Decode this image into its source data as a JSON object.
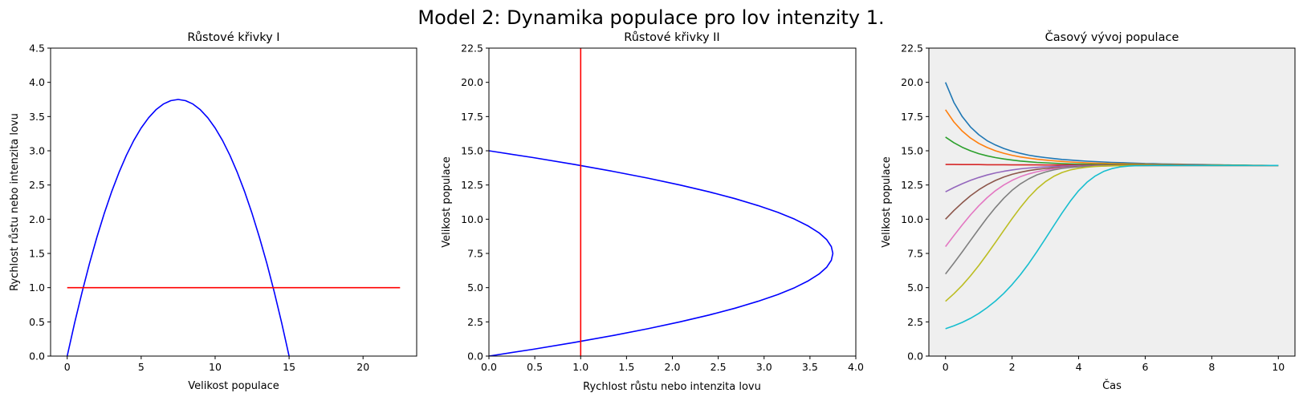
{
  "figure": {
    "suptitle": "Model 2: Dynamika populace pro lov intenzity 1."
  },
  "chart_data": [
    {
      "type": "line",
      "title": "Růstové křivky I",
      "xlabel": "Velikost populace",
      "ylabel": "Rychlost růstu nebo intenzita lovu",
      "xlim": [
        -1.125,
        23.625
      ],
      "ylim": [
        0,
        4.5
      ],
      "xticks": [
        0,
        5,
        10,
        15,
        20
      ],
      "xtick_labels": [
        "0",
        "5",
        "10",
        "15",
        "20"
      ],
      "yticks": [
        0,
        0.5,
        1,
        1.5,
        2,
        2.5,
        3,
        3.5,
        4,
        4.5
      ],
      "ytick_labels": [
        "0.0",
        "0.5",
        "1.0",
        "1.5",
        "2.0",
        "2.5",
        "3.0",
        "3.5",
        "4.0",
        "4.5"
      ],
      "background": "#ffffff",
      "series": [
        {
          "color": "#0000ff",
          "x": [
            0,
            0.5,
            1,
            1.5,
            2,
            2.5,
            3,
            3.5,
            4,
            4.5,
            5,
            5.5,
            6,
            6.5,
            7,
            7.5,
            8,
            8.5,
            9,
            9.5,
            10,
            10.5,
            11,
            11.5,
            12,
            12.5,
            13,
            13.5,
            14,
            14.5,
            15
          ],
          "y": [
            0,
            0.483,
            0.933,
            1.35,
            1.733,
            2.083,
            2.4,
            2.683,
            2.933,
            3.15,
            3.333,
            3.483,
            3.6,
            3.683,
            3.733,
            3.75,
            3.733,
            3.683,
            3.6,
            3.483,
            3.333,
            3.15,
            2.933,
            2.683,
            2.4,
            2.083,
            1.733,
            1.35,
            0.933,
            0.483,
            0
          ]
        },
        {
          "color": "#ff0000",
          "x": [
            0,
            22.5
          ],
          "y": [
            1,
            1
          ]
        }
      ]
    },
    {
      "type": "line",
      "title": "Růstové křivky II",
      "xlabel": "Rychlost růstu nebo intenzita lovu",
      "ylabel": "Velikost populace",
      "xlim": [
        0,
        4
      ],
      "ylim": [
        0,
        22.5
      ],
      "xticks": [
        0,
        0.5,
        1,
        1.5,
        2,
        2.5,
        3,
        3.5,
        4
      ],
      "xtick_labels": [
        "0.0",
        "0.5",
        "1.0",
        "1.5",
        "2.0",
        "2.5",
        "3.0",
        "3.5",
        "4.0"
      ],
      "yticks": [
        0,
        2.5,
        5,
        7.5,
        10,
        12.5,
        15,
        17.5,
        20,
        22.5
      ],
      "ytick_labels": [
        "0.0",
        "2.5",
        "5.0",
        "7.5",
        "10.0",
        "12.5",
        "15.0",
        "17.5",
        "20.0",
        "22.5"
      ],
      "background": "#ffffff",
      "series": [
        {
          "color": "#0000ff",
          "x": [
            0,
            0.483,
            0.933,
            1.35,
            1.733,
            2.083,
            2.4,
            2.683,
            2.933,
            3.15,
            3.333,
            3.483,
            3.6,
            3.683,
            3.733,
            3.75,
            3.733,
            3.683,
            3.6,
            3.483,
            3.333,
            3.15,
            2.933,
            2.683,
            2.4,
            2.083,
            1.733,
            1.35,
            0.933,
            0.483,
            0
          ],
          "y": [
            0,
            0.5,
            1,
            1.5,
            2,
            2.5,
            3,
            3.5,
            4,
            4.5,
            5,
            5.5,
            6,
            6.5,
            7,
            7.5,
            8,
            8.5,
            9,
            9.5,
            10,
            10.5,
            11,
            11.5,
            12,
            12.5,
            13,
            13.5,
            14,
            14.5,
            15
          ]
        },
        {
          "color": "#ff0000",
          "x": [
            1,
            1
          ],
          "y": [
            0,
            22.5
          ]
        }
      ]
    },
    {
      "type": "line",
      "title": "Časový vývoj populace",
      "xlabel": "Čas",
      "ylabel": "Velikost populace",
      "xlim": [
        -0.5,
        10.5
      ],
      "ylim": [
        0,
        22.5
      ],
      "xticks": [
        0,
        2,
        4,
        6,
        8,
        10
      ],
      "xtick_labels": [
        "0",
        "2",
        "4",
        "6",
        "8",
        "10"
      ],
      "yticks": [
        0,
        2.5,
        5,
        7.5,
        10,
        12.5,
        15,
        17.5,
        20,
        22.5
      ],
      "ytick_labels": [
        "0.0",
        "2.5",
        "5.0",
        "7.5",
        "10.0",
        "12.5",
        "15.0",
        "17.5",
        "20.0",
        "22.5"
      ],
      "background": "#efefef",
      "x": [
        0,
        0.25,
        0.5,
        0.75,
        1,
        1.25,
        1.5,
        1.75,
        2,
        2.25,
        2.5,
        2.75,
        3,
        3.25,
        3.5,
        3.75,
        4,
        4.25,
        4.5,
        4.75,
        5,
        5.25,
        5.5,
        5.75,
        6,
        6.25,
        6.5,
        6.75,
        7,
        7.25,
        7.5,
        7.75,
        8,
        8.25,
        8.5,
        8.75,
        9,
        9.25,
        9.5,
        9.75,
        10
      ],
      "series": [
        {
          "color": "#1f77b4",
          "y": [
            20,
            18.54,
            17.5,
            16.74,
            16.17,
            15.74,
            15.42,
            15.17,
            14.97,
            14.81,
            14.68,
            14.58,
            14.5,
            14.43,
            14.37,
            14.32,
            14.28,
            14.24,
            14.21,
            14.18,
            14.15,
            14.13,
            14.11,
            14.09,
            14.07,
            14.06,
            14.04,
            14.03,
            14.02,
            14.01,
            14,
            13.99,
            13.98,
            13.97,
            13.96,
            13.95,
            13.94,
            13.93,
            13.93,
            13.93,
            13.93
          ]
        },
        {
          "color": "#ff7f0e",
          "y": [
            18,
            17.11,
            16.44,
            15.93,
            15.54,
            15.24,
            15,
            14.82,
            14.67,
            14.55,
            14.46,
            14.38,
            14.32,
            14.27,
            14.22,
            14.18,
            14.15,
            14.12,
            14.1,
            14.08,
            14.06,
            14.05,
            14.04,
            14.03,
            14.02,
            14.01,
            14,
            13.99,
            13.99,
            13.98,
            13.97,
            13.97,
            13.96,
            13.96,
            13.95,
            13.95,
            13.94,
            13.94,
            13.94,
            13.93,
            13.93
          ]
        },
        {
          "color": "#2ca02c",
          "y": [
            16,
            15.59,
            15.26,
            15,
            14.79,
            14.63,
            14.5,
            14.4,
            14.32,
            14.25,
            14.2,
            14.15,
            14.12,
            14.09,
            14.06,
            14.04,
            14.03,
            14.02,
            14.01,
            14,
            13.99,
            13.98,
            13.98,
            13.97,
            13.97,
            13.96,
            13.96,
            13.96,
            13.95,
            13.95,
            13.95,
            13.95,
            13.94,
            13.94,
            13.94,
            13.94,
            13.94,
            13.93,
            13.93,
            13.93,
            13.93
          ]
        },
        {
          "color": "#d62728",
          "y": [
            14,
            14,
            13.99,
            13.99,
            13.99,
            13.98,
            13.98,
            13.98,
            13.97,
            13.97,
            13.97,
            13.97,
            13.96,
            13.96,
            13.96,
            13.96,
            13.95,
            13.95,
            13.95,
            13.95,
            13.95,
            13.95,
            13.94,
            13.94,
            13.94,
            13.94,
            13.94,
            13.94,
            13.94,
            13.94,
            13.94,
            13.94,
            13.93,
            13.93,
            13.93,
            13.93,
            13.93,
            13.93,
            13.93,
            13.93,
            13.93
          ]
        },
        {
          "color": "#9467bd",
          "y": [
            12,
            12.31,
            12.59,
            12.84,
            13.05,
            13.23,
            13.38,
            13.5,
            13.6,
            13.68,
            13.74,
            13.79,
            13.83,
            13.86,
            13.88,
            13.9,
            13.91,
            13.92,
            13.92,
            13.93,
            13.93,
            13.93,
            13.93,
            13.93,
            13.93,
            13.93,
            13.93,
            13.93,
            13.93,
            13.93,
            13.93,
            13.93,
            13.93,
            13.93,
            13.93,
            13.93,
            13.93,
            13.93,
            13.93,
            13.93,
            13.93
          ]
        },
        {
          "color": "#8c564b",
          "y": [
            10,
            10.63,
            11.2,
            11.71,
            12.15,
            12.52,
            12.83,
            13.08,
            13.28,
            13.43,
            13.55,
            13.64,
            13.71,
            13.76,
            13.8,
            13.83,
            13.86,
            13.88,
            13.89,
            13.9,
            13.91,
            13.91,
            13.92,
            13.92,
            13.92,
            13.93,
            13.93,
            13.93,
            13.93,
            13.93,
            13.93,
            13.93,
            13.93,
            13.93,
            13.93,
            13.93,
            13.93,
            13.93,
            13.93,
            13.93,
            13.93
          ]
        },
        {
          "color": "#e377c2",
          "y": [
            8,
            8.8,
            9.58,
            10.31,
            10.98,
            11.57,
            12.08,
            12.5,
            12.84,
            13.11,
            13.31,
            13.47,
            13.59,
            13.68,
            13.75,
            13.8,
            13.83,
            13.86,
            13.88,
            13.89,
            13.9,
            13.91,
            13.92,
            13.92,
            13.92,
            13.93,
            13.93,
            13.93,
            13.93,
            13.93,
            13.93,
            13.93,
            13.93,
            13.93,
            13.93,
            13.93,
            13.93,
            13.93,
            13.93,
            13.93,
            13.93
          ]
        },
        {
          "color": "#7f7f7f",
          "y": [
            6,
            6.79,
            7.61,
            8.45,
            9.29,
            10.1,
            10.85,
            11.53,
            12.11,
            12.58,
            12.95,
            13.24,
            13.45,
            13.6,
            13.71,
            13.78,
            13.83,
            13.86,
            13.88,
            13.9,
            13.91,
            13.92,
            13.92,
            13.92,
            13.93,
            13.93,
            13.93,
            13.93,
            13.93,
            13.93,
            13.93,
            13.93,
            13.93,
            13.93,
            13.93,
            13.93,
            13.93,
            13.93,
            13.93,
            13.93,
            13.93
          ]
        },
        {
          "color": "#bcbd22",
          "y": [
            4,
            4.55,
            5.17,
            5.86,
            6.62,
            7.44,
            8.3,
            9.18,
            10.04,
            10.86,
            11.6,
            12.23,
            12.74,
            13.13,
            13.41,
            13.6,
            13.72,
            13.8,
            13.85,
            13.88,
            13.9,
            13.91,
            13.92,
            13.92,
            13.93,
            13.93,
            13.93,
            13.93,
            13.93,
            13.93,
            13.93,
            13.93,
            13.93,
            13.93,
            13.93,
            13.93,
            13.93,
            13.93,
            13.93,
            13.93,
            13.93
          ]
        },
        {
          "color": "#17becf",
          "y": [
            2,
            2.21,
            2.46,
            2.76,
            3.12,
            3.54,
            4.02,
            4.58,
            5.22,
            5.95,
            6.76,
            7.64,
            8.57,
            9.52,
            10.45,
            11.32,
            12.08,
            12.7,
            13.16,
            13.49,
            13.7,
            13.82,
            13.88,
            13.91,
            13.92,
            13.93,
            13.93,
            13.93,
            13.93,
            13.93,
            13.93,
            13.93,
            13.93,
            13.93,
            13.93,
            13.93,
            13.93,
            13.93,
            13.93,
            13.93,
            13.93
          ]
        }
      ]
    }
  ]
}
